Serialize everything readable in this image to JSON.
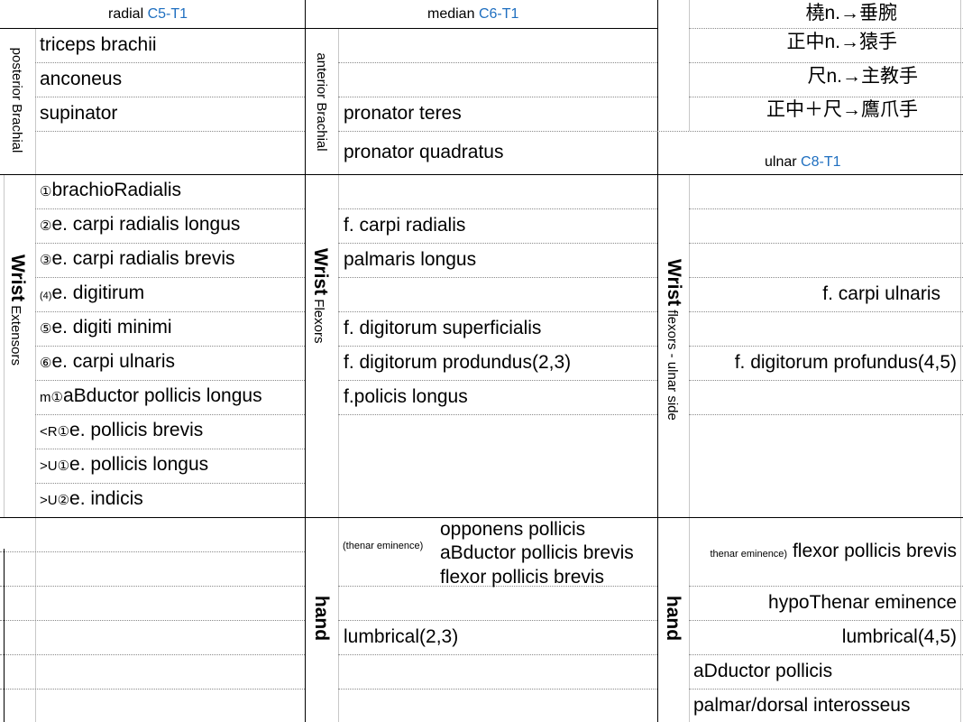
{
  "headers": {
    "radial": {
      "name": "radial",
      "range": "C5-T1"
    },
    "median": {
      "name": "median",
      "range": "C6-T1"
    },
    "ulnar": {
      "name": "ulnar",
      "range": "C8-T1"
    }
  },
  "nerve_notes": [
    "橈n.→垂腕",
    "正中n.→猿手",
    "尺n.→主教手",
    "正中＋尺→鷹爪手"
  ],
  "side_labels": {
    "posterior_brachial": "posterior Brachial",
    "anterior_brachial": "anterior Brachial",
    "wrist_word": "Wrist",
    "wrist_extensors": "Extensors",
    "wrist_flexors": "Flexors",
    "wrist_ulnar": "flexors - ulnar side",
    "hand_median": "hand",
    "hand_ulnar": "hand"
  },
  "radial_brachial": [
    "triceps brachii",
    "anconeus",
    "supinator"
  ],
  "median_brachial": [
    "pronator teres",
    "pronator quadratus"
  ],
  "radial_wrist": [
    {
      "mark": "①",
      "text": "brachioRadialis"
    },
    {
      "mark": "②",
      "text": "e. carpi radialis longus"
    },
    {
      "mark": "③",
      "text": "e. carpi radialis brevis"
    },
    {
      "mark": "(4)",
      "text": "e. digitirum"
    },
    {
      "mark": "⑤",
      "text": "e. digiti minimi"
    },
    {
      "mark": "⑥",
      "text": "e. carpi ulnaris"
    },
    {
      "mark": "m①",
      "text": "aBductor pollicis longus"
    },
    {
      "mark": "<R①",
      "text": "e. pollicis brevis"
    },
    {
      "mark": ">U①",
      "text": "e. pollicis longus"
    },
    {
      "mark": ">U②",
      "text": "e. indicis"
    }
  ],
  "median_wrist": [
    "f. carpi radialis",
    "palmaris longus",
    "f. digitorum superficialis",
    "f. digitorum produndus(2,3)",
    "f.policis longus"
  ],
  "ulnar_wrist": [
    "f. carpi ulnaris",
    "f. digitorum profundus(4,5)"
  ],
  "median_hand": {
    "thenar_label": "(thenar eminence)",
    "thenar_items": [
      "opponens pollicis",
      "aBductor pollicis brevis",
      "flexor pollicis brevis"
    ],
    "lumbrical": "lumbrical(2,3)"
  },
  "ulnar_hand": {
    "thenar_label": "thenar eminence)",
    "thenar_item": "flexor pollicis brevis",
    "items": [
      "hypoThenar eminence",
      "lumbrical(4,5)",
      "aDductor pollicis",
      "palmar/dorsal  interosseus"
    ]
  }
}
